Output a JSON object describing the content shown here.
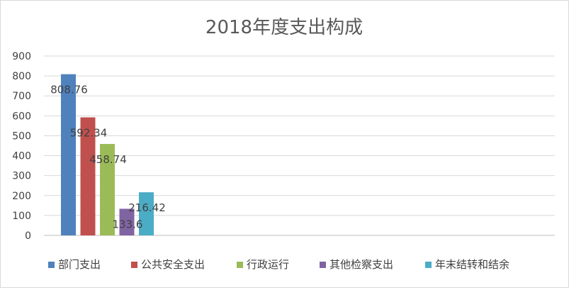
{
  "chart_data": {
    "type": "bar",
    "title": "2018年度支出构成",
    "xlabel": "",
    "ylabel": "",
    "ylim": [
      0,
      900
    ],
    "yticks": [
      0,
      100,
      200,
      300,
      400,
      500,
      600,
      700,
      800,
      900
    ],
    "grid": true,
    "legend_position": "bottom",
    "series": [
      {
        "name": "部门支出",
        "value": 808.76,
        "label": "808.76",
        "color": "#4F81BD"
      },
      {
        "name": "公共安全支出",
        "value": 592.34,
        "label": "592.34",
        "color": "#C0504D"
      },
      {
        "name": "行政运行",
        "value": 458.74,
        "label": "458.74",
        "color": "#9BBB59"
      },
      {
        "name": "其他检察支出",
        "value": 133.6,
        "label": "133.6",
        "color": "#8064A2"
      },
      {
        "name": "年末结转和结余",
        "value": 216.42,
        "label": "216.42",
        "color": "#4BACC6"
      }
    ]
  }
}
